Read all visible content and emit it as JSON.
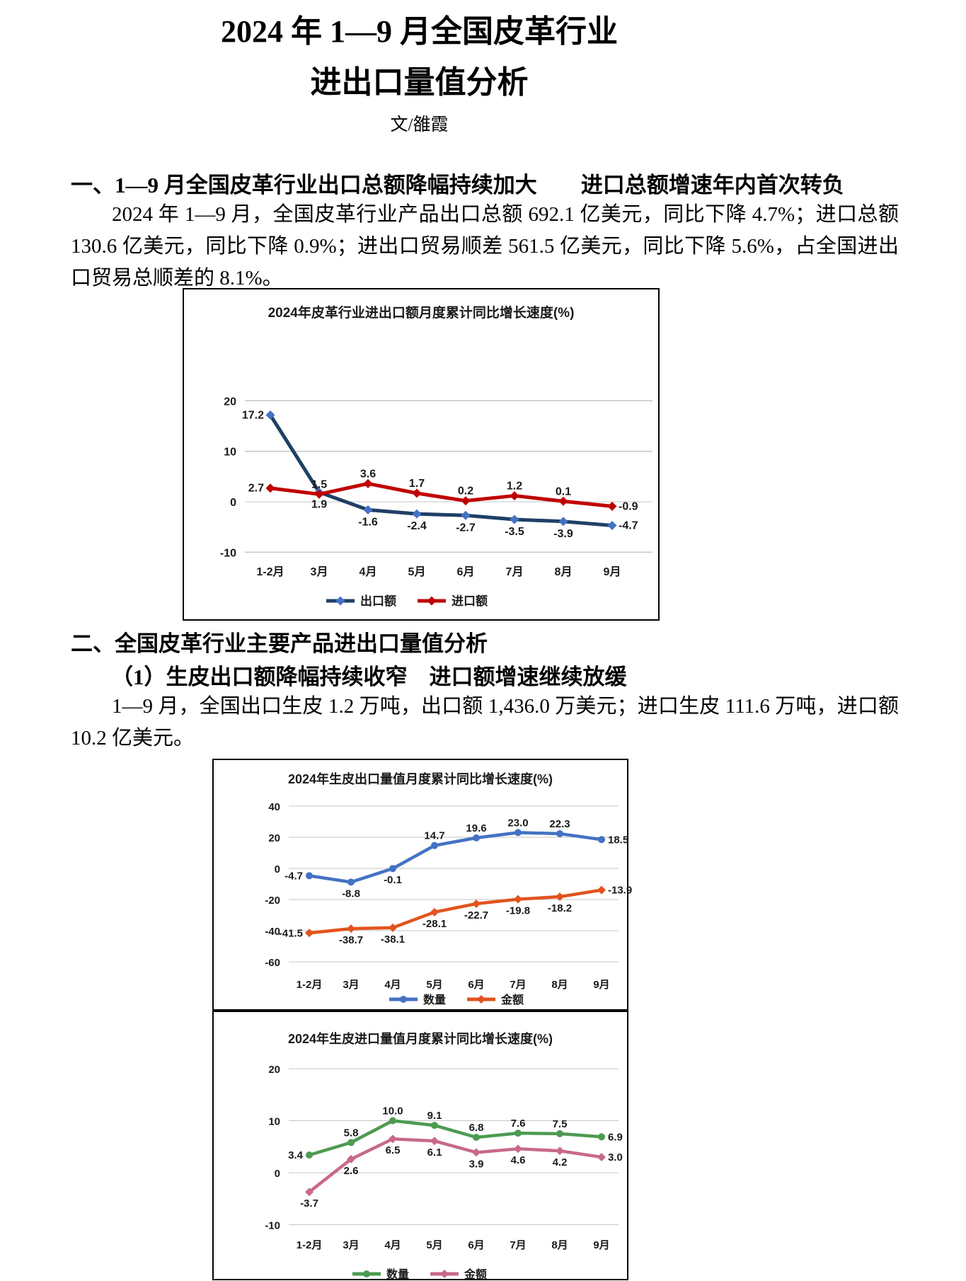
{
  "page": {
    "title_line1": "2024 年 1—9 月全国皮革行业",
    "title_line2": "进出口量值分析",
    "byline": "文/雒霞"
  },
  "section1": {
    "heading": "一、1—9 月全国皮革行业出口总额降幅持续加大　　进口总额增速年内首次转负",
    "paragraph": "2024 年 1—9 月，全国皮革行业产品出口总额 692.1 亿美元，同比下降 4.7%；进口总额 130.6 亿美元，同比下降 0.9%；进出口贸易顺差 561.5 亿美元，同比下降 5.6%，占全国进出口贸易总顺差的 8.1%。"
  },
  "section2": {
    "heading": "二、全国皮革行业主要产品进出口量值分析",
    "sub_heading": "（1）生皮出口额降幅持续收窄　进口额增速继续放缓",
    "paragraph": "1—9 月，全国出口生皮 1.2 万吨，出口额 1,436.0 万美元；进口生皮 111.6 万吨，进口额 10.2 亿美元。"
  },
  "chart_data": [
    {
      "type": "line",
      "title": "2024年皮革行业进出口额月度累计同比增长速度(%)",
      "categories": [
        "1-2月",
        "3月",
        "4月",
        "5月",
        "6月",
        "7月",
        "8月",
        "9月"
      ],
      "yticks": [
        20,
        10,
        0,
        -10
      ],
      "ylim": [
        -13,
        24
      ],
      "grid": true,
      "grid_color": "#C6C6C6",
      "legend_position": "bottom",
      "series": [
        {
          "name": "出口额",
          "color": "#1F4066",
          "marker_color": "#4472C4",
          "marker": "diamond",
          "values": [
            17.2,
            1.9,
            -1.6,
            -2.4,
            -2.7,
            -3.5,
            -3.9,
            -4.7
          ],
          "label_positions": [
            "left",
            "below",
            "below",
            "below",
            "below",
            "below",
            "below",
            "right"
          ]
        },
        {
          "name": "进口额",
          "color": "#C00000",
          "marker_color": "#C00000",
          "marker": "diamond",
          "values": [
            2.7,
            1.5,
            3.6,
            1.7,
            0.2,
            1.2,
            0.1,
            -0.9
          ],
          "label_positions": [
            "left",
            "above",
            "above",
            "above",
            "above",
            "above",
            "above",
            "right"
          ]
        }
      ]
    },
    {
      "type": "line",
      "title": "2024年生皮出口量值月度累计同比增长速度(%)",
      "categories": [
        "1-2月",
        "3月",
        "4月",
        "5月",
        "6月",
        "7月",
        "8月",
        "9月"
      ],
      "yticks": [
        40,
        20,
        0,
        -20,
        -40,
        -60
      ],
      "ylim": [
        -62,
        44
      ],
      "grid": true,
      "grid_color": "#C6C6C6",
      "legend_position": "bottom",
      "series": [
        {
          "name": "数量",
          "color": "#4472C4",
          "marker_color": "#4472C4",
          "marker": "circle",
          "values": [
            -4.7,
            -8.8,
            -0.1,
            14.7,
            19.6,
            23.0,
            22.3,
            18.5
          ],
          "label_positions": [
            "left",
            "below",
            "below",
            "above",
            "above",
            "above",
            "above",
            "right"
          ]
        },
        {
          "name": "金额",
          "color": "#E2531D",
          "marker_color": "#E2531D",
          "marker": "diamond",
          "values": [
            -41.5,
            -38.7,
            -38.1,
            -28.1,
            -22.7,
            -19.8,
            -18.2,
            -13.9
          ],
          "label_positions": [
            "left",
            "below",
            "below",
            "below",
            "below",
            "below",
            "below",
            "right"
          ]
        }
      ]
    },
    {
      "type": "line",
      "title": "2024年生皮进口量值月度累计同比增长速度(%)",
      "categories": [
        "1-2月",
        "3月",
        "4月",
        "5月",
        "6月",
        "7月",
        "8月",
        "9月"
      ],
      "yticks": [
        20,
        10,
        0,
        -10
      ],
      "ylim": [
        -12,
        23
      ],
      "grid": true,
      "grid_color": "#C6C6C6",
      "legend_position": "bottom",
      "series": [
        {
          "name": "数量",
          "color": "#4C9B51",
          "marker_color": "#4C9B51",
          "marker": "circle",
          "values": [
            3.4,
            5.8,
            10.0,
            9.1,
            6.8,
            7.6,
            7.5,
            6.9
          ],
          "label_positions": [
            "left",
            "above",
            "above",
            "above",
            "above",
            "above",
            "above",
            "right"
          ]
        },
        {
          "name": "金额",
          "color": "#C9698A",
          "marker_color": "#C9698A",
          "marker": "diamond",
          "values": [
            -3.7,
            2.6,
            6.5,
            6.1,
            3.9,
            4.6,
            4.2,
            3.0
          ],
          "label_positions": [
            "below",
            "below",
            "below",
            "below",
            "below",
            "below",
            "below",
            "right"
          ]
        }
      ]
    }
  ]
}
